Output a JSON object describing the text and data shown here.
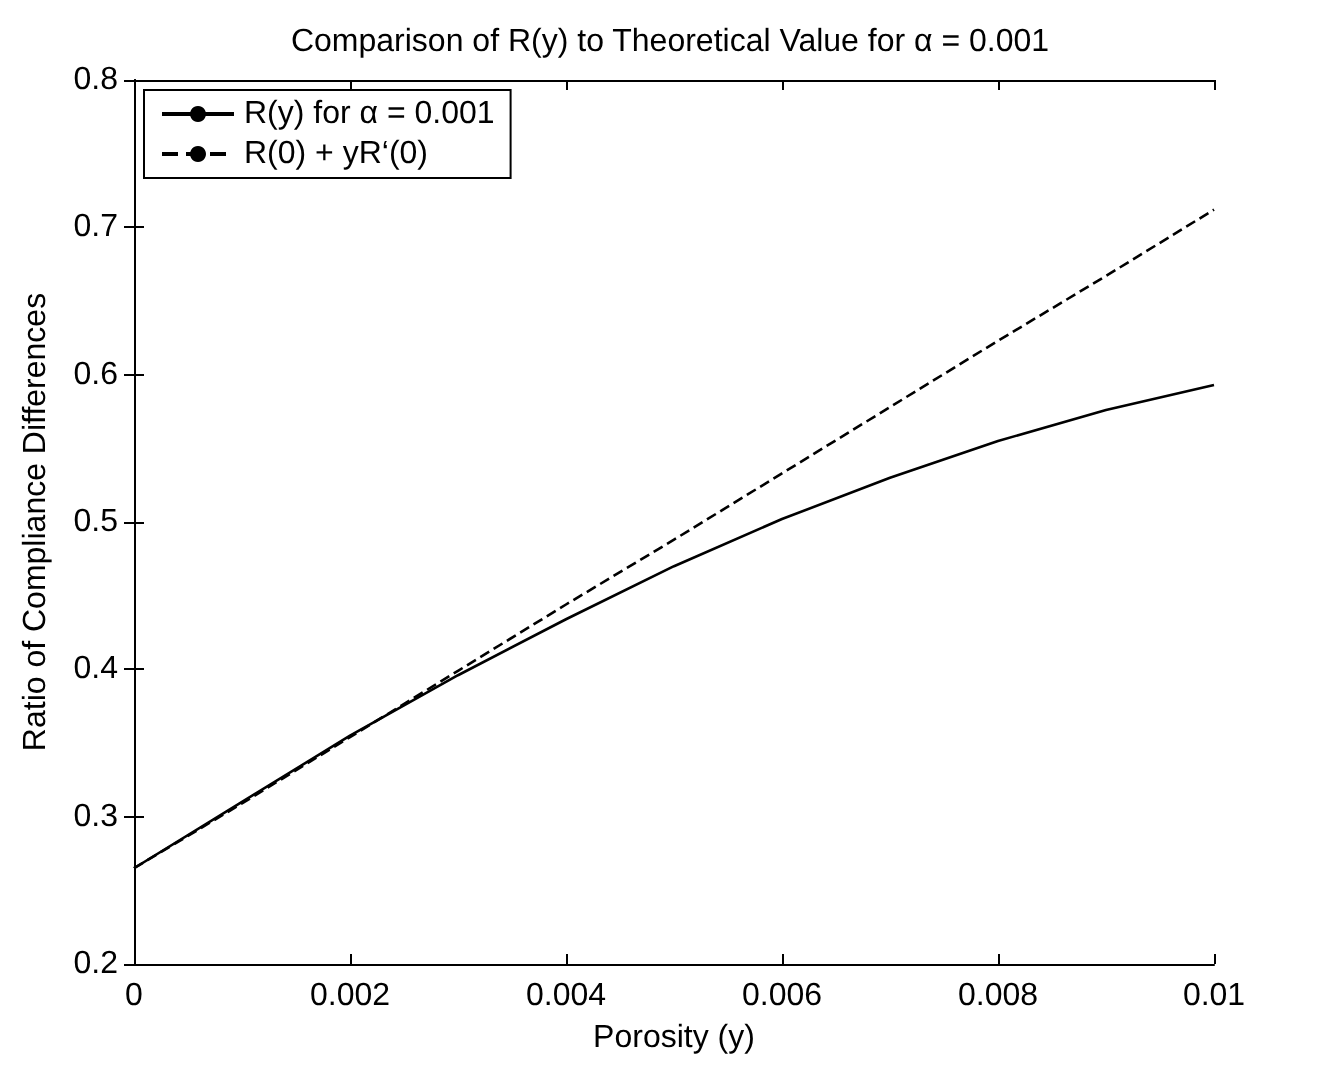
{
  "chart_data": {
    "type": "line",
    "title": "Comparison of R(y) to Theoretical Value for α = 0.001",
    "xlabel": "Porosity (y)",
    "ylabel": "Ratio of Compliance Differences",
    "x": [
      0,
      0.001,
      0.002,
      0.003,
      0.004,
      0.005,
      0.006,
      0.007,
      0.008,
      0.009,
      0.01
    ],
    "series": [
      {
        "name": "R(y) for α = 0.001",
        "color": "#000000",
        "line_style": "solid",
        "values": [
          0.265,
          0.31,
          0.355,
          0.396,
          0.434,
          0.47,
          0.502,
          0.53,
          0.555,
          0.576,
          0.593
        ]
      },
      {
        "name": "R(0) + yR‘(0)",
        "color": "#000000",
        "line_style": "dashed",
        "values": [
          0.265,
          0.309,
          0.354,
          0.399,
          0.444,
          0.488,
          0.533,
          0.578,
          0.623,
          0.667,
          0.712
        ]
      }
    ],
    "xlim": [
      0,
      0.01
    ],
    "xticks": [
      0,
      0.002,
      0.004,
      0.006,
      0.008,
      0.01
    ],
    "ylim": [
      0.2,
      0.8
    ],
    "yticks": [
      0.2,
      0.3,
      0.4,
      0.5,
      0.6,
      0.7,
      0.8
    ],
    "grid": false,
    "legend": "top left",
    "marker": "none"
  }
}
